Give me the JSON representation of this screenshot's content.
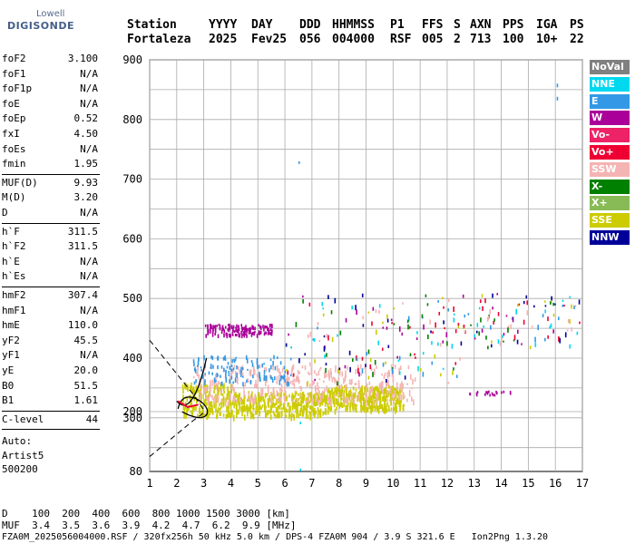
{
  "logo": {
    "top": "Lowell",
    "main": "DIGISONDE"
  },
  "header": {
    "labels": [
      "Station",
      "YYYY",
      "DAY",
      "DDD",
      "HHMMSS",
      "P1",
      "FFS",
      "S",
      "AXN",
      "PPS",
      "IGA",
      "PS"
    ],
    "values": [
      "Fortaleza",
      "2025",
      "Fev25",
      "056",
      "004000",
      "RSF",
      "005",
      "2",
      "713",
      "100",
      "10+",
      "22"
    ]
  },
  "params": [
    {
      "k": "foF2",
      "v": "3.100"
    },
    {
      "k": "foF1",
      "v": "N/A"
    },
    {
      "k": "foF1p",
      "v": "N/A"
    },
    {
      "k": "foE",
      "v": "N/A"
    },
    {
      "k": "foEp",
      "v": "0.52"
    },
    {
      "k": "fxI",
      "v": "4.50"
    },
    {
      "k": "foEs",
      "v": "N/A"
    },
    {
      "k": "fmin",
      "v": "1.95"
    },
    {
      "k": "MUF(D)",
      "v": "9.93"
    },
    {
      "k": "M(D)",
      "v": "3.20"
    },
    {
      "k": "D",
      "v": "N/A"
    },
    {
      "k": "h`F",
      "v": "311.5"
    },
    {
      "k": "h`F2",
      "v": "311.5"
    },
    {
      "k": "h`E",
      "v": "N/A"
    },
    {
      "k": "h`Es",
      "v": "N/A"
    },
    {
      "k": "hmF2",
      "v": "307.4"
    },
    {
      "k": "hmF1",
      "v": "N/A"
    },
    {
      "k": "hmE",
      "v": "110.0"
    },
    {
      "k": "yF2",
      "v": "45.5"
    },
    {
      "k": "yF1",
      "v": "N/A"
    },
    {
      "k": "yE",
      "v": "20.0"
    },
    {
      "k": "B0",
      "v": "51.5"
    },
    {
      "k": "B1",
      "v": "1.61"
    },
    {
      "k": "C-level",
      "v": "44"
    }
  ],
  "auto": [
    "Auto:",
    "Artist5",
    "500200"
  ],
  "legend": [
    {
      "label": "NoVal",
      "color": "#808080"
    },
    {
      "label": "NNE",
      "color": "#00d8f0"
    },
    {
      "label": "E",
      "color": "#3399e6"
    },
    {
      "label": "W",
      "color": "#aa0099"
    },
    {
      "label": "Vo-",
      "color": "#ee2266"
    },
    {
      "label": "Vo+",
      "color": "#ee0033"
    },
    {
      "label": "SSW",
      "color": "#f4b4b4"
    },
    {
      "label": "X-",
      "color": "#008000"
    },
    {
      "label": "X+",
      "color": "#88bb55"
    },
    {
      "label": "SSE",
      "color": "#cccc00"
    },
    {
      "label": "NNW",
      "color": "#000099"
    }
  ],
  "axes": {
    "y_ticks": [
      "900",
      "800",
      "700",
      "600",
      "500",
      "400",
      "300",
      "200",
      "80"
    ],
    "x_ticks": [
      "1",
      "2",
      "3",
      "4",
      "5",
      "6",
      "7",
      "8",
      "9",
      "10",
      "11",
      "12",
      "13",
      "14",
      "15",
      "16",
      "17"
    ]
  },
  "bottom": {
    "line1": "D    100  200  400  600  800 1000 1500 3000 [km]",
    "line2": "MUF  3.4  3.5  3.6  3.9  4.2  4.7  6.2  9.9 [MHz]",
    "line3": "FZA0M_2025056004000.RSF / 320fx256h 50 kHz 5.0 km / DPS-4 FZA0M 904 / 3.9 S 321.6 E   Ion2Png 1.3.20"
  },
  "colors": {
    "grid": "#aaaaaa",
    "w": "#aa0099",
    "e": "#3399e6",
    "sse": "#cccc00",
    "ssw": "#f4b4b4",
    "nne": "#00d8f0"
  }
}
